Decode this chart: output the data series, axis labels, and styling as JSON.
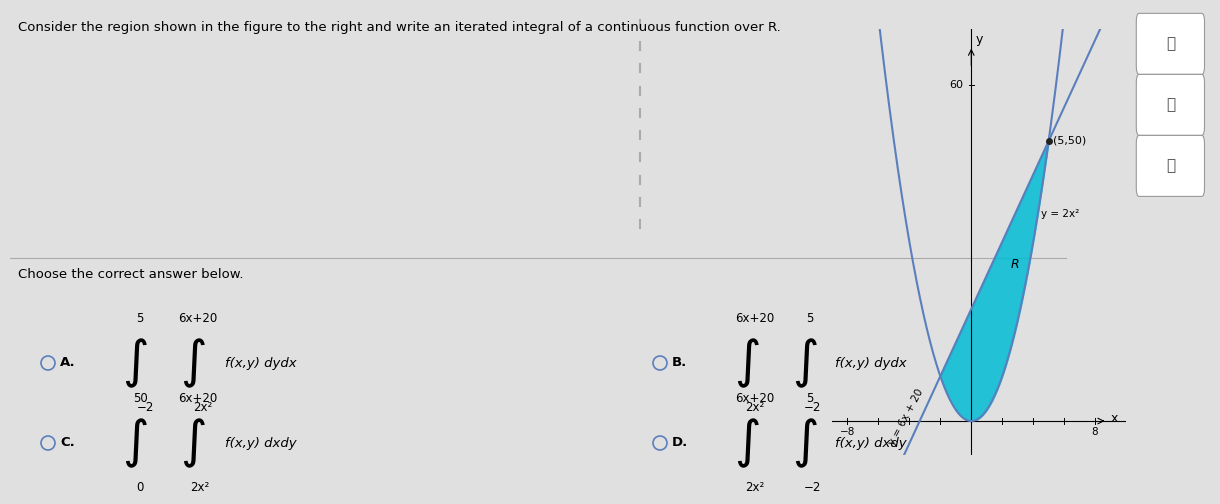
{
  "title": "Consider the region shown in the figure to the right and write an iterated integral of a continuous function over R.",
  "choose_text": "Choose the correct answer below.",
  "bg_color": "#e0e0e0",
  "fill_color": "#00bcd4",
  "line_color": "#5b7fbd",
  "curve1_label": "y = 6x + 20",
  "curve2_label": "y = 2x²",
  "point_label": "(5,50)",
  "answer_A_outer_low": "-2",
  "answer_A_outer_high": "5",
  "answer_A_inner_low": "2x²",
  "answer_A_inner_high": "6x+20",
  "answer_A_type": "dydx",
  "answer_B_outer_low": "2x²",
  "answer_B_outer_high": "6x+20",
  "answer_B_inner_low": "-2",
  "answer_B_inner_high": "5",
  "answer_B_type": "dydx",
  "answer_C_outer_low": "0",
  "answer_C_outer_high": "50",
  "answer_C_inner_low": "2x²",
  "answer_C_inner_high": "6x+20",
  "answer_C_type": "dxdy",
  "answer_D_outer_low": "2x²",
  "answer_D_outer_high": "6x+20",
  "answer_D_inner_low": "-2",
  "answer_D_inner_high": "5",
  "answer_D_type": "dxdy"
}
